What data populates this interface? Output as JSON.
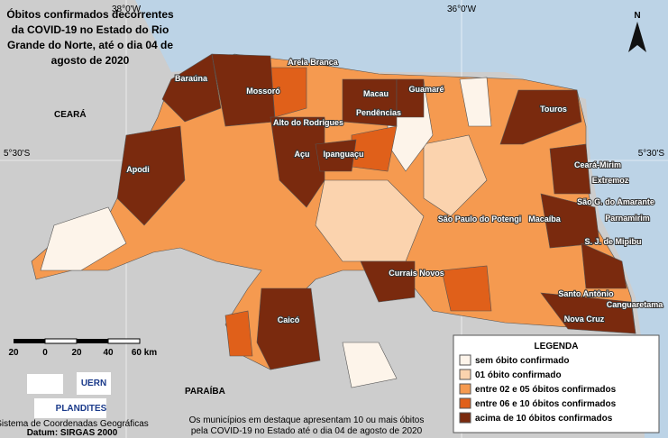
{
  "title_lines": [
    "Óbitos confirmados decorrentes",
    "da COVID-19 no Estado do Rio",
    "Grande do Norte, até o dia 04 de",
    "agosto de 2020"
  ],
  "grid_labels": {
    "lon_west": "38°0'W",
    "lon_east": "36°0'W",
    "lat_left": "5°30'S",
    "lat_right": "5°30'S"
  },
  "north": "N",
  "states": [
    "CEARÁ",
    "PARAÍBA"
  ],
  "cities": [
    "Baraúna",
    "Mossoró",
    "Areia Branca",
    "Alto do Rodrigues",
    "Açu",
    "Apodi",
    "Macau",
    "Guamaré",
    "Pendências",
    "Ipanguaçu",
    "Touros",
    "Ceará-Mirim",
    "Extremoz",
    "São G. do Amarante",
    "Macaíba",
    "Parnamirim",
    "S. J. de Mipibu",
    "São Paulo do Potengi",
    "Currais Novos",
    "Caicó",
    "Santo Antônio",
    "Canguaretama",
    "Nova Cruz"
  ],
  "legend": {
    "title": "LEGENDA",
    "items": [
      {
        "label": "sem óbito confirmado",
        "color": "#fdf4ea"
      },
      {
        "label": "01 óbito confirmado",
        "color": "#fbd3ae"
      },
      {
        "label": "entre 02 e 05 óbitos confirmados",
        "color": "#f59a50"
      },
      {
        "label": "entre 06 e 10 óbitos confirmados",
        "color": "#e0601a"
      },
      {
        "label": "acima de 10 óbitos confirmados",
        "color": "#7a2a0e"
      }
    ]
  },
  "scale_labels": [
    "20",
    "0",
    "20",
    "40",
    "60 km"
  ],
  "logos": [
    "UERN",
    "PLANDITES"
  ],
  "crs": "Sistema de Coordenadas Geográficas",
  "datum": "Datum: SIRGAS 2000",
  "note_lines": [
    "Os municípios em destaque apresentam 10 ou mais óbitos",
    "pela COVID-19 no Estado até o dia 04 de agosto de 2020"
  ]
}
